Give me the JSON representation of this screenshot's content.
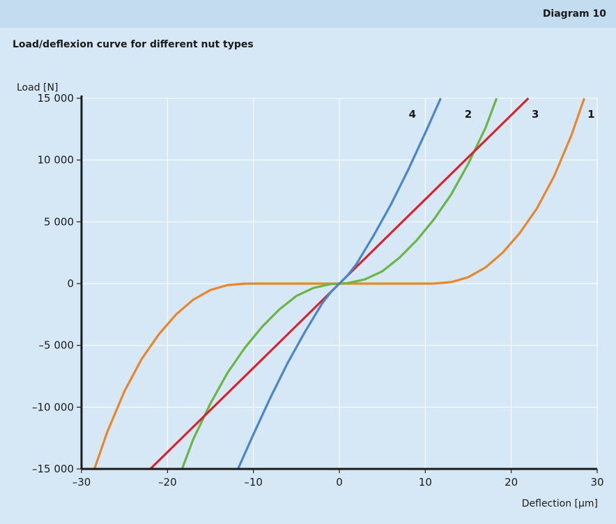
{
  "header": {
    "diagram_label": "Diagram 10"
  },
  "chart_title": "Load/deflexion curve for different nut types",
  "colors": {
    "background": "#d6e8f5",
    "header_background": "#c4dcef",
    "grid": "#ffffff",
    "axis": "#1a1a1a"
  },
  "chart_data": {
    "type": "line",
    "title": "Load/deflexion curve for different nut types",
    "xlabel": "Deflection [µm]",
    "ylabel": "Load [N]",
    "xlim": [
      -30,
      30
    ],
    "ylim": [
      -15000,
      15000
    ],
    "x_ticks": [
      -30,
      -20,
      -10,
      0,
      10,
      20,
      30
    ],
    "x_tick_labels": [
      "–30",
      "–20",
      "–10",
      "0",
      "10",
      "20",
      "30"
    ],
    "y_ticks": [
      15000,
      10000,
      5000,
      0,
      -5000,
      -10000,
      -15000
    ],
    "y_tick_labels": [
      "15 000",
      "10 000",
      "5 000",
      "0",
      "–5 000",
      "–10 000",
      "–15 000"
    ],
    "grid": true,
    "series": [
      {
        "name": "1",
        "color": "#e8862a",
        "x": [
          -28.5,
          -27,
          -25,
          -23,
          -21,
          -19,
          -17,
          -15,
          -13,
          -11,
          -10,
          0,
          10,
          11,
          13,
          15,
          17,
          19,
          21,
          23,
          25,
          27,
          28.5
        ],
        "y": [
          -15000,
          -12000,
          -8700,
          -6100,
          -4100,
          -2500,
          -1300,
          -520,
          -120,
          -8,
          0,
          0,
          0,
          8,
          120,
          520,
          1300,
          2500,
          4100,
          6100,
          8700,
          12000,
          15000
        ]
      },
      {
        "name": "2",
        "color": "#6ab546",
        "x": [
          -18.3,
          -17,
          -15,
          -13,
          -11,
          -9,
          -7,
          -5,
          -3,
          -1,
          0,
          1,
          3,
          5,
          7,
          9,
          11,
          13,
          15,
          17,
          18.3
        ],
        "y": [
          -15000,
          -12600,
          -9700,
          -7200,
          -5200,
          -3500,
          -2100,
          -1000,
          -350,
          -40,
          0,
          40,
          350,
          1000,
          2100,
          3500,
          5200,
          7200,
          9700,
          12600,
          15000
        ]
      },
      {
        "name": "3",
        "color": "#d8232f",
        "x": [
          -22,
          22
        ],
        "y": [
          -15000,
          15000
        ]
      },
      {
        "name": "4",
        "color": "#4a86c8",
        "x": [
          -11.8,
          -10,
          -8,
          -6,
          -4,
          -2,
          -1,
          0,
          1,
          2,
          4,
          6,
          8,
          10,
          11.8
        ],
        "y": [
          -15000,
          -12200,
          -9200,
          -6400,
          -3900,
          -1600,
          -700,
          0,
          700,
          1600,
          3900,
          6400,
          9200,
          12200,
          15000
        ]
      }
    ],
    "curve_labels": [
      {
        "text": "4",
        "x": 8.5,
        "y": 13700
      },
      {
        "text": "2",
        "x": 15,
        "y": 13700
      },
      {
        "text": "3",
        "x": 22.8,
        "y": 13700
      },
      {
        "text": "1",
        "x": 29.3,
        "y": 13700
      }
    ]
  }
}
